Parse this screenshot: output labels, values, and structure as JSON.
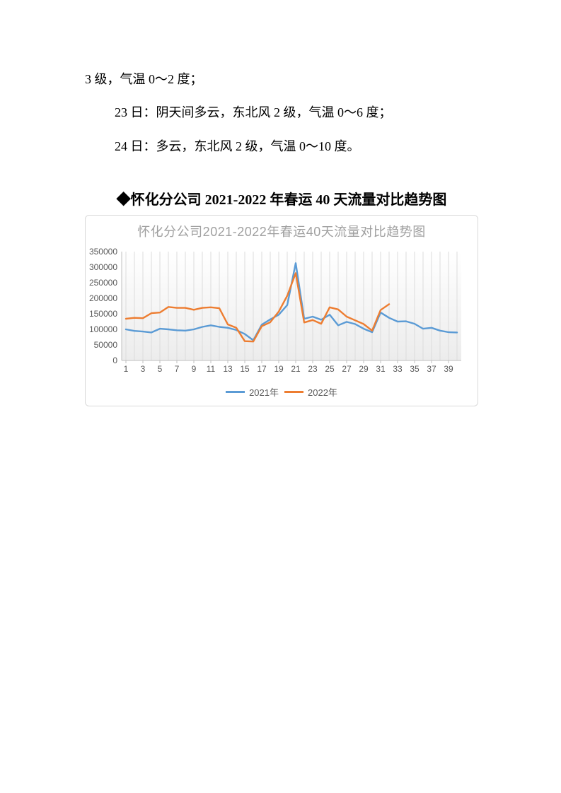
{
  "document": {
    "paragraphs": [
      "3 级，气温 0～2 度；",
      "23 日：阴天间多云，东北风 2 级，气温 0～6 度；",
      "24 日：多云，东北风 2 级，气温 0～10 度。"
    ],
    "heading": "◆怀化分公司 2021-2022 年春运 40 天流量对比趋势图"
  },
  "chart": {
    "title": "怀化分公司2021-2022年春运40天流量对比趋势图"
  },
  "chart_data": {
    "type": "line",
    "title": "怀化分公司2021-2022年春运40天流量对比趋势图",
    "xlabel": "",
    "ylabel": "",
    "ylim": [
      0,
      350000
    ],
    "y_ticks": [
      0,
      50000,
      100000,
      150000,
      200000,
      250000,
      300000,
      350000
    ],
    "categories": [
      1,
      2,
      3,
      4,
      5,
      6,
      7,
      8,
      9,
      10,
      11,
      12,
      13,
      14,
      15,
      16,
      17,
      18,
      19,
      20,
      21,
      22,
      23,
      24,
      25,
      26,
      27,
      28,
      29,
      30,
      31,
      32,
      33,
      34,
      35,
      36,
      37,
      38,
      39,
      40
    ],
    "x_tick_labels": [
      "1",
      "3",
      "5",
      "7",
      "9",
      "11",
      "13",
      "15",
      "17",
      "19",
      "21",
      "23",
      "25",
      "27",
      "29",
      "31",
      "33",
      "35",
      "37",
      "39"
    ],
    "grid": "vertical",
    "legend_position": "bottom",
    "series": [
      {
        "name": "2021年",
        "color": "#5B9BD5",
        "values": [
          100000,
          95000,
          93000,
          90000,
          102000,
          100000,
          97000,
          96000,
          100000,
          108000,
          113000,
          108000,
          105000,
          98000,
          85000,
          65000,
          115000,
          132000,
          147000,
          178000,
          313000,
          134000,
          141000,
          131000,
          147000,
          113000,
          124000,
          117000,
          102000,
          91000,
          154000,
          137000,
          125000,
          126000,
          118000,
          102000,
          105000,
          96000,
          91000,
          90000
        ]
      },
      {
        "name": "2022年",
        "color": "#ED7D31",
        "values": [
          134000,
          137000,
          136000,
          152000,
          154000,
          172000,
          169000,
          169000,
          163000,
          169000,
          171000,
          168000,
          116000,
          105000,
          62000,
          61000,
          110000,
          123000,
          157000,
          208000,
          281000,
          122000,
          130000,
          118000,
          171000,
          164000,
          141000,
          129000,
          117000,
          96000,
          162000,
          181000
        ]
      }
    ],
    "colors": {
      "title_text": "#a0a0a0",
      "axis_text": "#595959",
      "axis_line": "#bfbfbf",
      "gridline": "#dcdcdc",
      "chart_border": "#d9d9d9"
    }
  }
}
